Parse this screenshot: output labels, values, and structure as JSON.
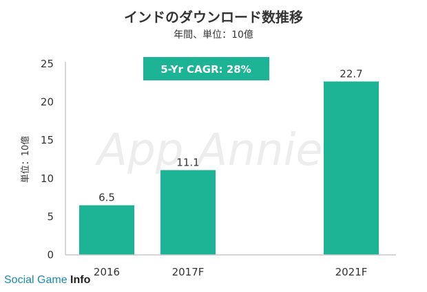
{
  "chart_data": {
    "type": "bar",
    "title": "インドのダウンロード数推移",
    "subtitle": "年間、単位：10億",
    "ylabel": "単位：10億",
    "categories": [
      "2016",
      "2017F",
      "2021F"
    ],
    "values": [
      6.5,
      11.1,
      22.7
    ],
    "value_labels": [
      "6.5",
      "11.1",
      "22.7"
    ],
    "ylim": [
      0,
      25
    ],
    "yticks": [
      "0",
      "5",
      "10",
      "15",
      "20",
      "25"
    ],
    "grid": false,
    "bar_color": "#1db495",
    "annotation": "5-Yr CAGR: 28%",
    "annotation_color": "#1db495",
    "watermark": "App Annie"
  },
  "credit": {
    "prefix": "Social Game ",
    "bold": "Info"
  }
}
